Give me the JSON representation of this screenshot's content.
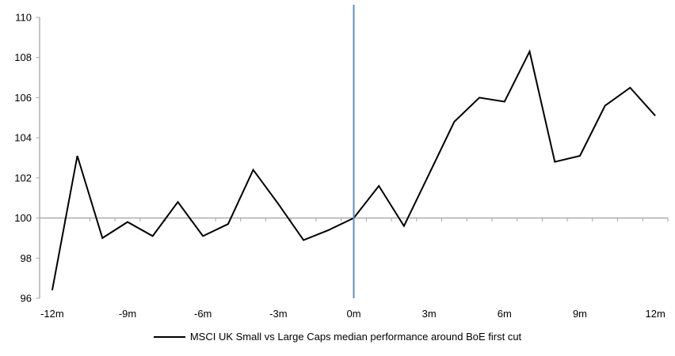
{
  "chart_data": {
    "type": "line",
    "title": "",
    "x": [
      -12,
      -11,
      -10,
      -9,
      -8,
      -7,
      -6,
      -5,
      -4,
      -3,
      -2,
      -1,
      0,
      1,
      2,
      3,
      4,
      5,
      6,
      7,
      8,
      9,
      10,
      11,
      12
    ],
    "series": [
      {
        "name": "MSCI UK Small vs Large Caps median performance around BoE first cut",
        "color": "#000000",
        "values": [
          96.4,
          103.1,
          99.0,
          99.8,
          99.1,
          100.8,
          99.1,
          99.7,
          102.4,
          100.7,
          98.9,
          99.4,
          100.0,
          101.6,
          99.6,
          102.2,
          104.8,
          106.0,
          105.8,
          108.3,
          102.8,
          103.1,
          105.6,
          106.5,
          105.1
        ]
      }
    ],
    "x_tick_label_months": [
      -12,
      -9,
      -6,
      -3,
      0,
      3,
      6,
      9,
      12
    ],
    "x_tick_labels": [
      "-12m",
      "-9m",
      "-6m",
      "-3m",
      "0m",
      "3m",
      "6m",
      "9m",
      "12m"
    ],
    "y_tick_labels": [
      110,
      108,
      106,
      104,
      102,
      100,
      98,
      96
    ],
    "ylim": [
      96,
      110
    ],
    "baseline_value": 100,
    "event_line_month": 0,
    "grid": "off",
    "legend": {
      "position": "bottom",
      "label": "MSCI UK Small vs Large Caps median performance around BoE first cut"
    },
    "colors": {
      "series": "#000000",
      "axis": "#A6A6A6",
      "baseline": "#A6A6A6",
      "event_line": "#5E8FC7"
    }
  }
}
